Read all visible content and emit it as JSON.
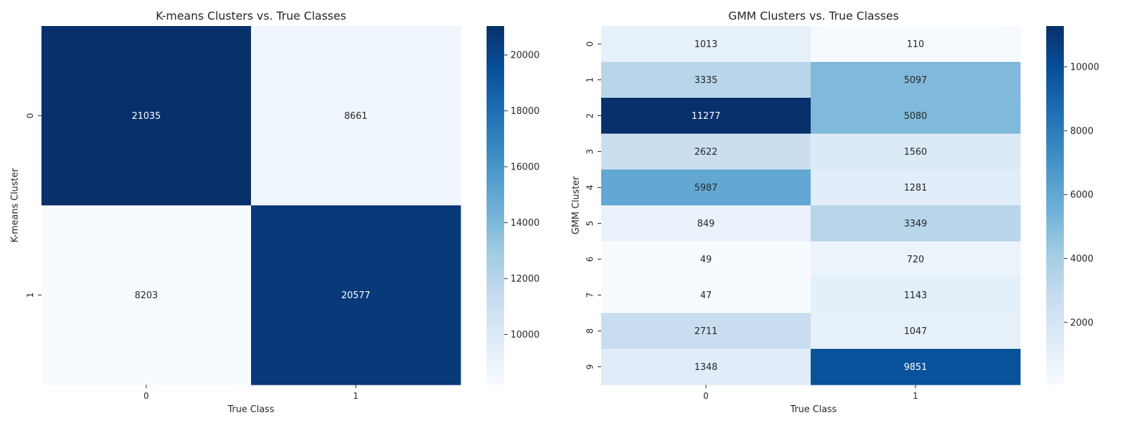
{
  "chart_data": [
    {
      "type": "heatmap",
      "title": "K-means Clusters vs. True Classes",
      "xlabel": "True Class",
      "ylabel": "K-means Cluster",
      "x_categories": [
        "0",
        "1"
      ],
      "y_categories": [
        "0",
        "1"
      ],
      "values": [
        [
          21035,
          8661
        ],
        [
          8203,
          20577
        ]
      ],
      "colormap": "Blues",
      "colorbar": {
        "range": [
          8203,
          21035
        ],
        "ticks": [
          "10000",
          "12000",
          "14000",
          "16000",
          "18000",
          "20000"
        ]
      }
    },
    {
      "type": "heatmap",
      "title": "GMM Clusters vs. True Classes",
      "xlabel": "True Class",
      "ylabel": "GMM Cluster",
      "x_categories": [
        "0",
        "1"
      ],
      "y_categories": [
        "0",
        "1",
        "2",
        "3",
        "4",
        "5",
        "6",
        "7",
        "8",
        "9"
      ],
      "values": [
        [
          1013,
          110
        ],
        [
          3335,
          5097
        ],
        [
          11277,
          5080
        ],
        [
          2622,
          1560
        ],
        [
          5987,
          1281
        ],
        [
          849,
          3349
        ],
        [
          49,
          720
        ],
        [
          47,
          1143
        ],
        [
          2711,
          1047
        ],
        [
          1348,
          9851
        ]
      ],
      "colormap": "Blues",
      "colorbar": {
        "range": [
          47,
          11277
        ],
        "ticks": [
          "2000",
          "4000",
          "6000",
          "8000",
          "10000"
        ]
      }
    }
  ]
}
